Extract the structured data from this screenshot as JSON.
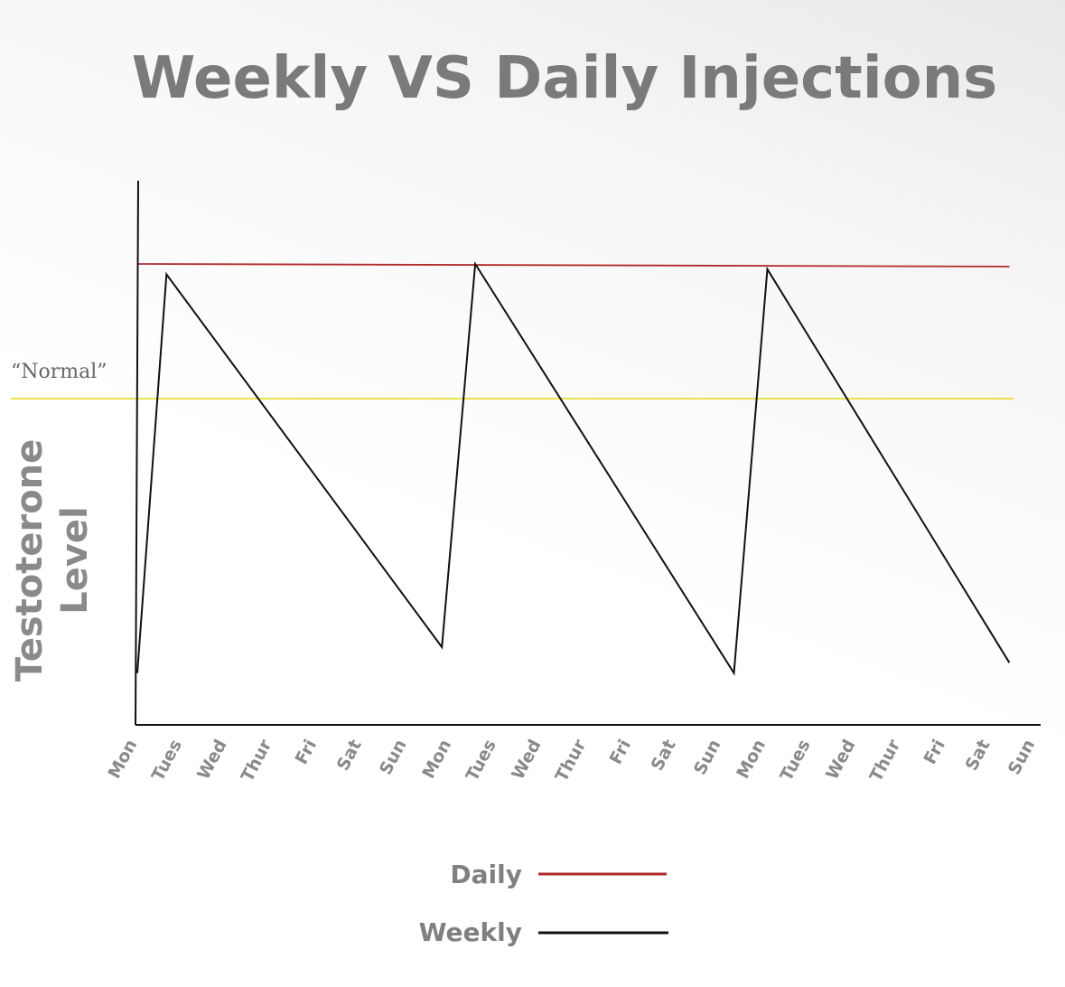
{
  "chart_data": {
    "type": "line",
    "title": "Weekly VS Daily Injections",
    "ylabel_lines": [
      "Testoterone",
      "Level"
    ],
    "xlabel": "",
    "categories": [
      "Mon",
      "Tues",
      "Wed",
      "Thur",
      "Fri",
      "Sat",
      "Sun",
      "Mon",
      "Tues",
      "Wed",
      "Thur",
      "Fri",
      "Sat",
      "Sun",
      "Mon",
      "Tues",
      "Wed",
      "Thur",
      "Fri",
      "Sat",
      "Sun"
    ],
    "x_range": [
      0,
      21
    ],
    "ylim": [
      0,
      100
    ],
    "reference_line": {
      "label": "“Normal”",
      "value": 63,
      "color": "#e8e24a"
    },
    "series": [
      {
        "name": "Daily",
        "color": "#b22a2a",
        "x": [
          0,
          20.9
        ],
        "values": [
          89,
          88.5
        ]
      },
      {
        "name": "Weekly",
        "color": "#111111",
        "x": [
          0,
          0.7,
          7.3,
          8.1,
          14.3,
          15.1,
          20.9
        ],
        "values": [
          10,
          87,
          15,
          89,
          10,
          88,
          12
        ]
      }
    ],
    "legend": [
      {
        "label": "Daily",
        "color": "#b22a2a"
      },
      {
        "label": "Weekly",
        "color": "#111111"
      }
    ],
    "grid": false
  }
}
